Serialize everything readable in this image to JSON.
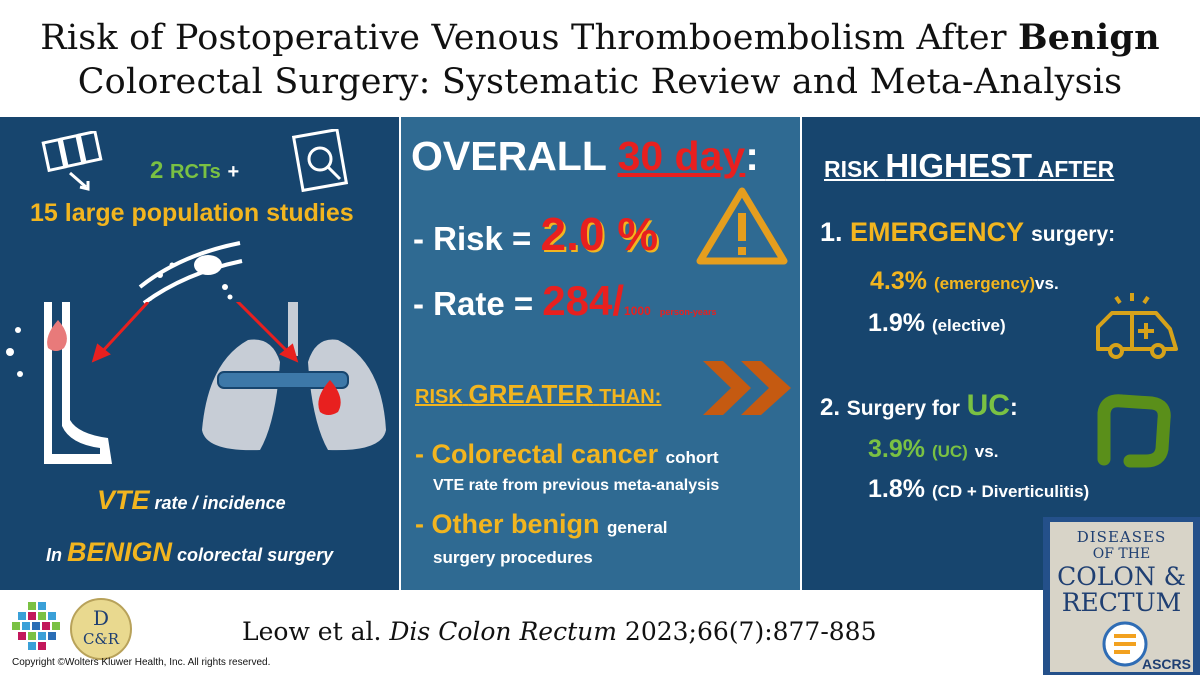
{
  "title": {
    "line1_prefix": "Risk of Postoperative Venous Thromboembolism After ",
    "line1_bold": "Benign",
    "line2": "Colorectal Surgery: Systematic Review and Meta-Analysis"
  },
  "left": {
    "rcts_num": "2",
    "rcts_label": "RCTs",
    "rcts_plus": "+",
    "population": "15 large population studies",
    "vte": "VTE",
    "vte_rest": "rate / incidence",
    "in_prefix": "In",
    "benign": "BENIGN",
    "in_rest": "colorectal surgery"
  },
  "middle": {
    "overall": "OVERALL",
    "thirty_day": "30 day",
    "colon": ":",
    "risk_label": "- Risk =",
    "risk_value": "2.0 %",
    "rate_label": "- Rate =",
    "rate_value": "284/",
    "rate_unit": "1000",
    "rate_unit2": "person-years",
    "greater_1": "RISK",
    "greater_2": "GREATER",
    "greater_3": "THAN:",
    "b1_dash": "-",
    "b1_main": "Colorectal cancer",
    "b1_small": "cohort",
    "b1_sub": "VTE rate from previous meta-analysis",
    "b2_dash": "-",
    "b2_main": "Other benign",
    "b2_small": "general",
    "b2_sub": "surgery procedures"
  },
  "right": {
    "head_1": "RISK",
    "head_2": "HIGHEST",
    "head_3": "AFTER",
    "e_num": "1.",
    "e_main": "EMERGENCY",
    "e_rest": "surgery:",
    "e_val1": "4.3%",
    "e_lab1": "(emergency)",
    "e_vs": "vs.",
    "e_val2": "1.9%",
    "e_lab2": "(elective)",
    "u_num": "2.",
    "u_main": "Surgery for",
    "u_uc": "UC",
    "u_colon": ":",
    "u_val1": "3.9%",
    "u_lab1": "(UC)",
    "u_vs": "vs.",
    "u_val2": "1.8%",
    "u_lab2": "(CD + Diverticulitis)"
  },
  "journal": {
    "line1": "DISEASES",
    "line2": "OF THE",
    "line3": "COLON &",
    "line4": "RECTUM",
    "society": "ASCRS"
  },
  "footer": {
    "citation_authors": "Leow et al.",
    "citation_journal": "Dis Colon Rectum",
    "citation_ref": "2023;66(7):877-885",
    "copyright": "Copyright ©Wolters Kluwer Health, Inc. All rights reserved.",
    "dcr_logo_top": "D",
    "dcr_logo_bottom": "C&R"
  },
  "colors": {
    "navy": "#17456e",
    "mid_blue": "#2f6a92",
    "orange": "#f2b51f",
    "green": "#7ac143",
    "red": "#e8201f"
  },
  "icons": [
    "documents-icon",
    "magnifier-report-icon",
    "blood-clot-vessel-icon",
    "leg-clot-icon",
    "lungs-clot-icon",
    "warning-icon",
    "double-chevron-icon",
    "ambulance-icon",
    "colon-icon",
    "wolters-kluwer-logo-icon",
    "dcr-logo-icon"
  ]
}
